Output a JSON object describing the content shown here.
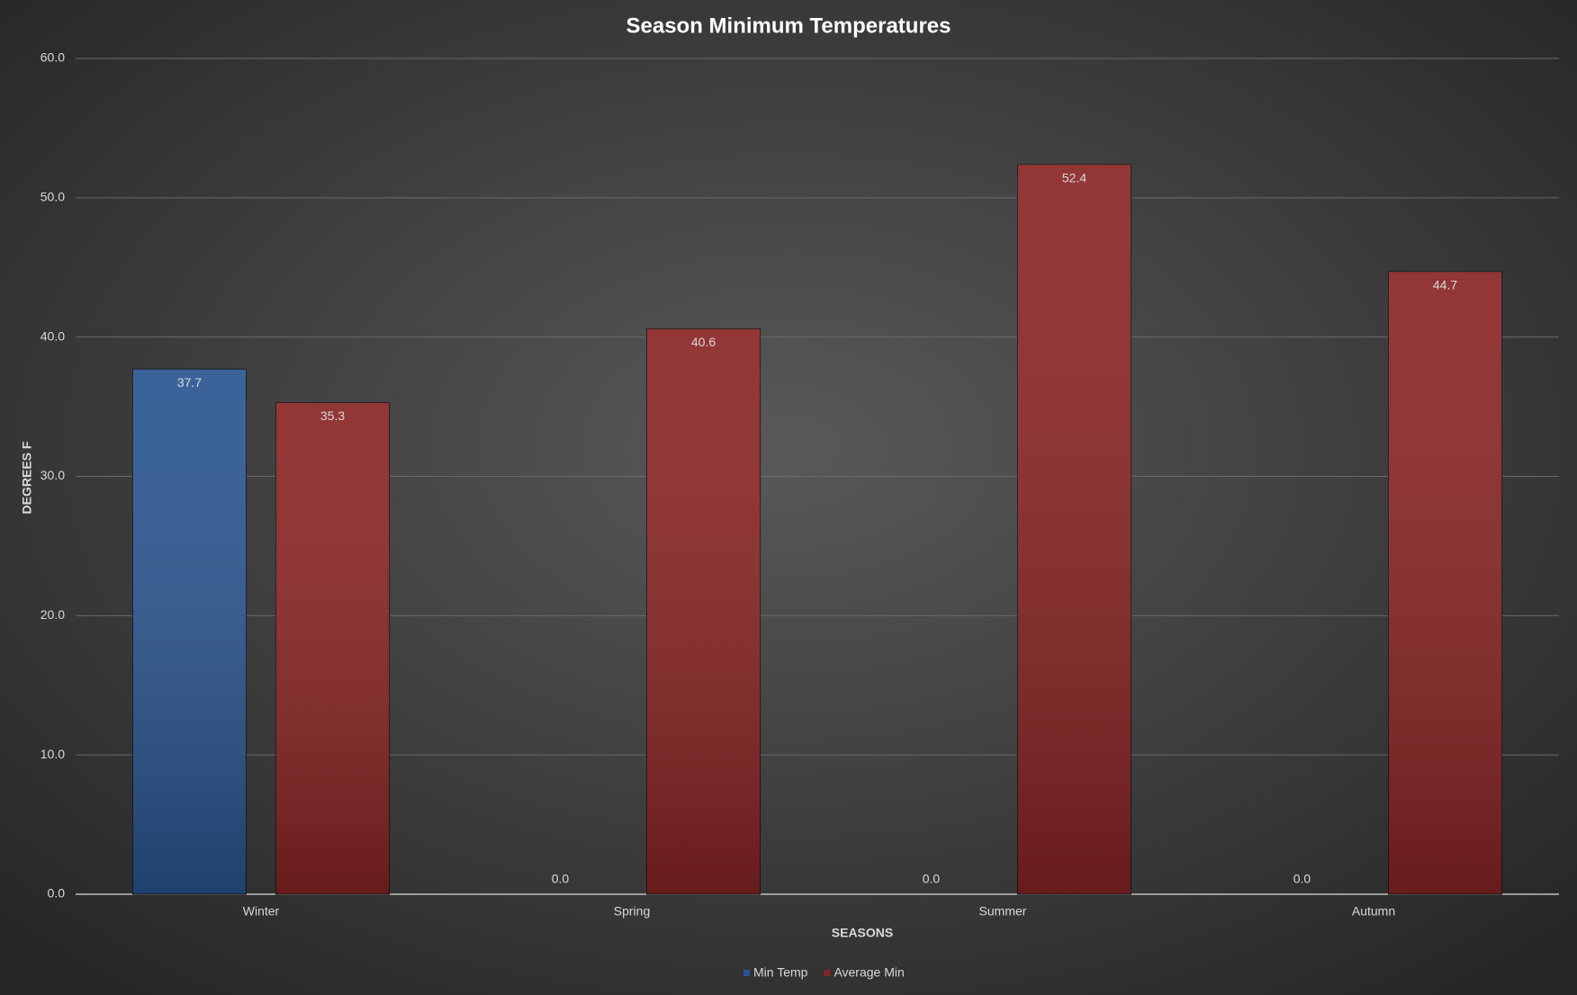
{
  "chart_data": {
    "type": "bar",
    "title": "Season Minimum Temperatures",
    "x_label": "SEASONS",
    "y_label": "DEGREES F",
    "categories": [
      "Winter",
      "Spring",
      "Summer",
      "Autumn"
    ],
    "series": [
      {
        "name": "Min Temp",
        "color": "#2a5590",
        "values": [
          37.7,
          0,
          0,
          0
        ],
        "value_labels": [
          "37.7",
          "0.0",
          "0.0",
          "0.0"
        ]
      },
      {
        "name": "Average Min",
        "color": "#8a2424",
        "values": [
          35.3,
          40.6,
          52.4,
          44.7
        ],
        "value_labels": [
          "35.3",
          "40.6",
          "52.4",
          "44.7"
        ]
      }
    ],
    "ylim": [
      0,
      60
    ],
    "yticks": [
      {
        "value": 0,
        "label": "0.0"
      },
      {
        "value": 10,
        "label": "10.0"
      },
      {
        "value": 20,
        "label": "20.0"
      },
      {
        "value": 30,
        "label": "30.0"
      },
      {
        "value": 40,
        "label": "40.0"
      },
      {
        "value": 50,
        "label": "50.0"
      },
      {
        "value": 60,
        "label": "60.0"
      }
    ],
    "grid": true,
    "legend": "bottom"
  }
}
